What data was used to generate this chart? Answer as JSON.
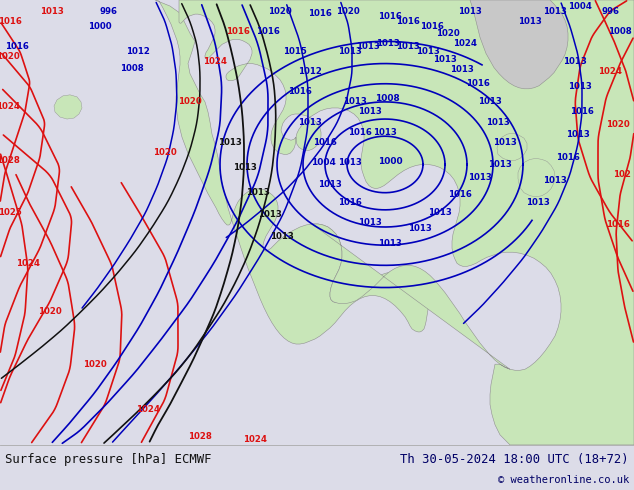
{
  "title_left": "Surface pressure [hPa] ECMWF",
  "title_right": "Th 30-05-2024 18:00 UTC (18+72)",
  "copyright": "© weatheronline.co.uk",
  "figsize": [
    6.34,
    4.9
  ],
  "dpi": 100,
  "ocean_color": "#b8d4e8",
  "land_color": "#c8e6b8",
  "greenland_color": "#c8c8c8",
  "bottom_bg": "#dcdce8",
  "isobar_red": "#dd1111",
  "isobar_blue": "#0000bb",
  "isobar_black": "#111111",
  "label_red": "#dd1111",
  "label_blue": "#0000bb",
  "label_black": "#111111",
  "text_dark": "#111111",
  "text_navy": "#000066"
}
